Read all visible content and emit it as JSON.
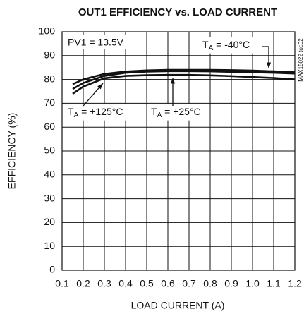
{
  "chart_data": {
    "type": "line",
    "title": "OUT1 EFFICIENCY vs. LOAD CURRENT",
    "xlabel": "LOAD CURRENT (A)",
    "ylabel": "EFFICIENCY (%)",
    "side_label": "MAX15022 toc02",
    "xlim": [
      0.1,
      1.2
    ],
    "xticks": [
      0.1,
      0.2,
      0.3,
      0.4,
      0.5,
      0.6,
      0.7,
      0.8,
      0.9,
      {
        "value": 1,
        "label": "1.0"
      },
      1.1,
      1.2
    ],
    "ylim": [
      0,
      100
    ],
    "yticks": [
      0,
      10,
      20,
      30,
      40,
      50,
      60,
      70,
      80,
      90,
      100
    ],
    "grid": true,
    "x": [
      0.15,
      0.2,
      0.3,
      0.4,
      0.5,
      0.6,
      0.7,
      0.8,
      0.9,
      1.0,
      1.1,
      1.2
    ],
    "series": [
      {
        "name": "-40°C",
        "color": "#111111",
        "values": [
          78,
          80,
          82.3,
          83.3,
          83.8,
          84,
          84,
          84,
          83.9,
          83.7,
          83.4,
          83
        ]
      },
      {
        "name": "+25°C",
        "color": "#111111",
        "values": [
          76,
          78.5,
          81.5,
          82.8,
          83.3,
          83.5,
          83.5,
          83.4,
          83.2,
          83,
          82.8,
          82.5
        ]
      },
      {
        "name": "+125°C",
        "color": "#111111",
        "values": [
          74,
          77,
          80.5,
          81.5,
          81.8,
          81.9,
          81.9,
          81.7,
          81.4,
          81,
          80.6,
          80
        ]
      }
    ],
    "annotations": [
      {
        "text": "PV1 = 13.5V"
      },
      {
        "base": "T",
        "sub": "A",
        "text": " = -40°C"
      },
      {
        "base": "T",
        "sub": "A",
        "text": " = +25°C"
      },
      {
        "base": "T",
        "sub": "A",
        "text": " = +125°C"
      }
    ]
  }
}
